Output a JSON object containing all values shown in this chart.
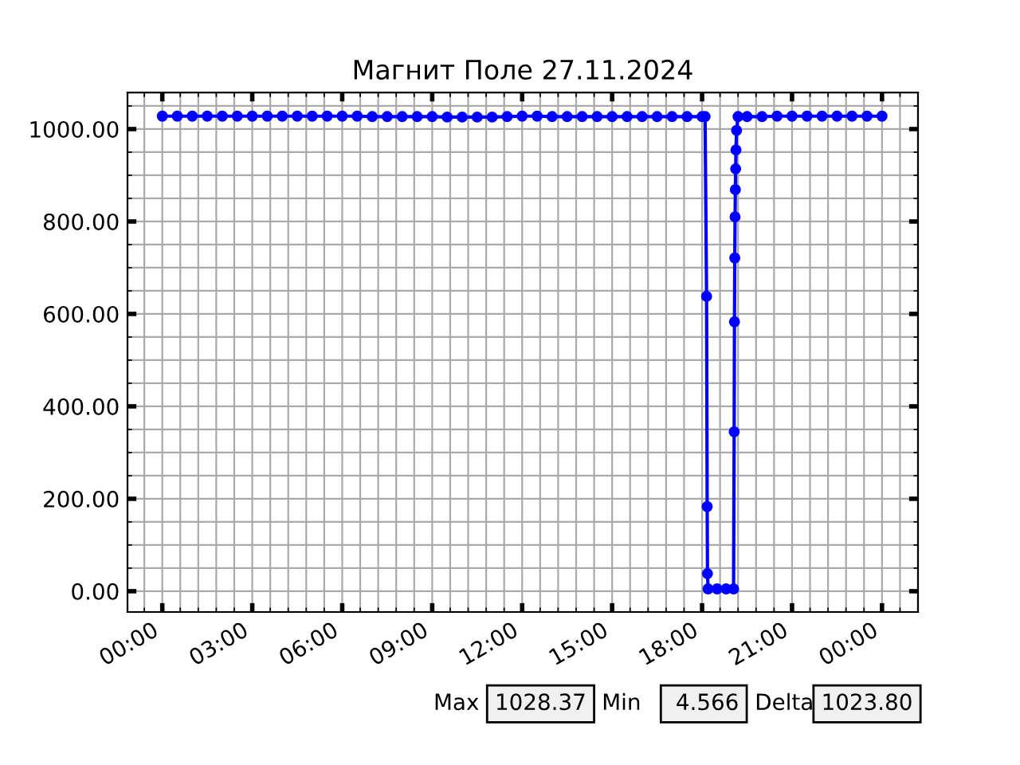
{
  "chart_data": {
    "type": "line",
    "title": "Магнит Поле 27.11.2024",
    "x": [
      0,
      0.5,
      1,
      1.5,
      2,
      2.5,
      3,
      3.5,
      4,
      4.5,
      5,
      5.5,
      6,
      6.5,
      7,
      7.5,
      8,
      8.5,
      9,
      9.5,
      10,
      10.5,
      11,
      11.5,
      12,
      12.5,
      13,
      13.5,
      14,
      14.5,
      15,
      15.5,
      16,
      16.5,
      17,
      17.5,
      18,
      18.1,
      18.15,
      18.17,
      18.18,
      18.2,
      18.5,
      18.8,
      19.05,
      19.07,
      19.08,
      19.09,
      19.1,
      19.11,
      19.12,
      19.13,
      19.15,
      19.2,
      19.5,
      20,
      20.5,
      21,
      21.5,
      22,
      22.5,
      23,
      23.5,
      24
    ],
    "series": [
      {
        "color": "#0000ff",
        "values": [
          1028,
          1028,
          1028,
          1028,
          1028,
          1028,
          1028,
          1028,
          1028,
          1028,
          1028,
          1028,
          1028,
          1028,
          1027,
          1027,
          1027,
          1027,
          1027,
          1026,
          1026,
          1026,
          1026,
          1027,
          1028,
          1028,
          1027,
          1027,
          1027,
          1027,
          1027,
          1027,
          1027,
          1027,
          1027,
          1027,
          1027,
          1027,
          638,
          183,
          38,
          5,
          5,
          5,
          5,
          345,
          583,
          721,
          810,
          869,
          914,
          955,
          997,
          1027,
          1027,
          1027,
          1028,
          1028,
          1028,
          1028,
          1028,
          1028,
          1028,
          1028
        ]
      }
    ],
    "xlim": [
      -1.16,
      25.2
    ],
    "xticks": [
      {
        "value": 0,
        "label": "00:00"
      },
      {
        "value": 3,
        "label": "03:00"
      },
      {
        "value": 6,
        "label": "06:00"
      },
      {
        "value": 9,
        "label": "09:00"
      },
      {
        "value": 12,
        "label": "12:00"
      },
      {
        "value": 15,
        "label": "15:00"
      },
      {
        "value": 18,
        "label": "18:00"
      },
      {
        "value": 21,
        "label": "21:00"
      },
      {
        "value": 24,
        "label": "00:00"
      }
    ],
    "ylim": [
      -45,
      1079
    ],
    "yticks": [
      {
        "value": 0,
        "label": "0.00"
      },
      {
        "value": 200,
        "label": "200.00"
      },
      {
        "value": 400,
        "label": "400.00"
      },
      {
        "value": 600,
        "label": "600.00"
      },
      {
        "value": 800,
        "label": "800.00"
      },
      {
        "value": 1000,
        "label": "1000.00"
      }
    ],
    "grid": true,
    "marker": "circle",
    "line_style": "solid",
    "annotations": [
      "Max",
      "1028.37",
      "Min",
      " 4.566",
      "Delta",
      "1023.80"
    ]
  }
}
